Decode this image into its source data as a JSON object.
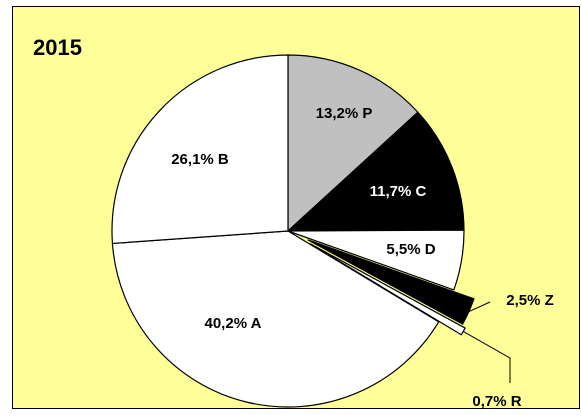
{
  "chart_data": {
    "type": "pie",
    "title": "2015",
    "slices": [
      {
        "label": "13,2% P",
        "name": "P",
        "value": 13.2,
        "color": "#c0c0c0"
      },
      {
        "label": "11,7% C",
        "name": "C",
        "value": 11.7,
        "color": "#000000"
      },
      {
        "label": "5,5% D",
        "name": "D",
        "value": 5.5,
        "color": "#ffffff"
      },
      {
        "label": "2,5% Z",
        "name": "Z",
        "value": 2.5,
        "color": "#000000"
      },
      {
        "label": "0,7% R",
        "name": "R",
        "value": 0.7,
        "color": "#ffffff"
      },
      {
        "label": "40,2% A",
        "name": "A",
        "value": 40.2,
        "color": "#ffffff"
      },
      {
        "label": "26,1% B",
        "name": "B",
        "value": 26.1,
        "color": "#ffffff"
      }
    ],
    "exploded": [
      "Z",
      "R"
    ],
    "background": "#ffff99",
    "legend": "none"
  }
}
